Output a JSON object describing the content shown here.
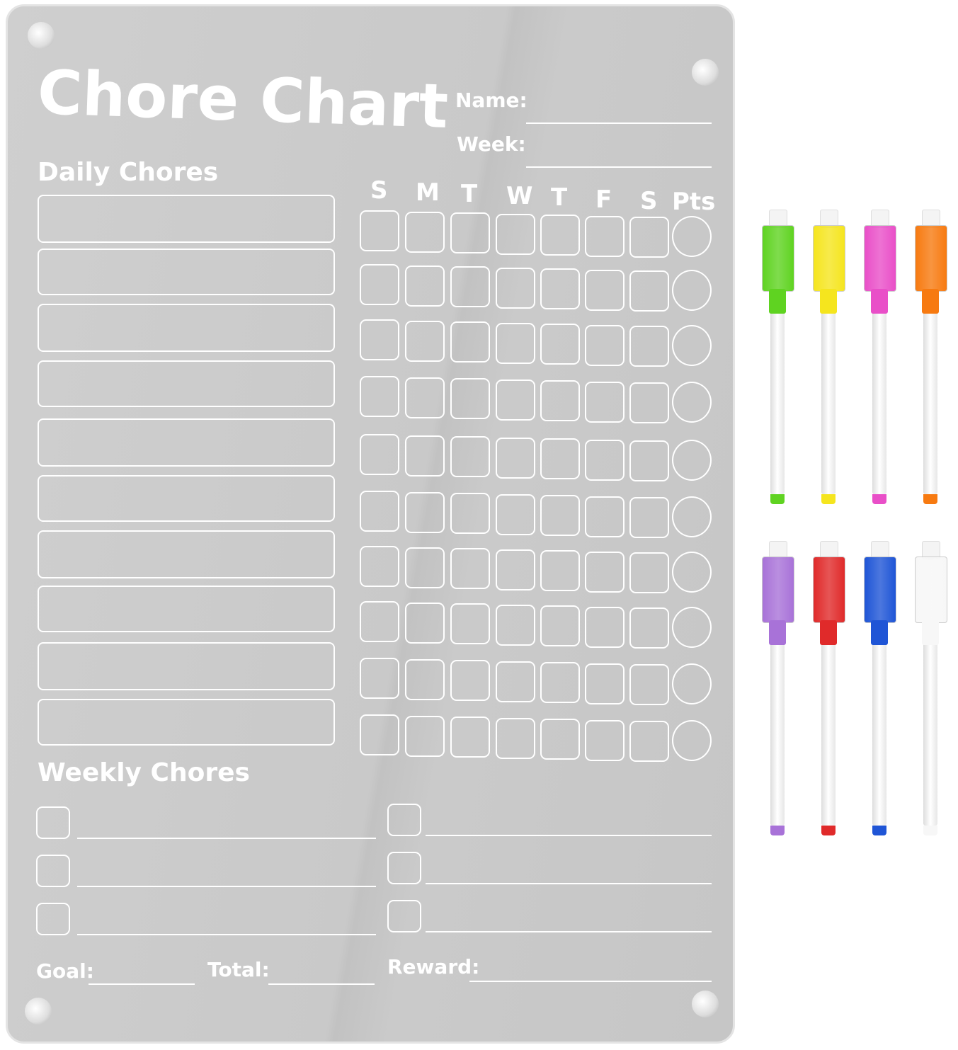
{
  "board": {
    "title": "Chore Chart",
    "name_label": "Name:",
    "week_label": "Week:",
    "daily_heading": "Daily Chores",
    "days": [
      "S",
      "M",
      "T",
      "W",
      "T",
      "F",
      "S"
    ],
    "points_label": "Pts",
    "daily_rows": 10,
    "weekly_heading": "Weekly Chores",
    "weekly_rows": 3,
    "goal_label": "Goal:",
    "total_label": "Total:",
    "reward_label": "Reward:",
    "color": "#c9c9c9"
  },
  "markers": [
    {
      "color": "#5fd321"
    },
    {
      "color": "#f5e51e"
    },
    {
      "color": "#e94fc8"
    },
    {
      "color": "#f77a10"
    },
    {
      "color": "#a872d8"
    },
    {
      "color": "#e02a2a"
    },
    {
      "color": "#1f55d6"
    },
    {
      "color": "#f7f7f7"
    }
  ]
}
